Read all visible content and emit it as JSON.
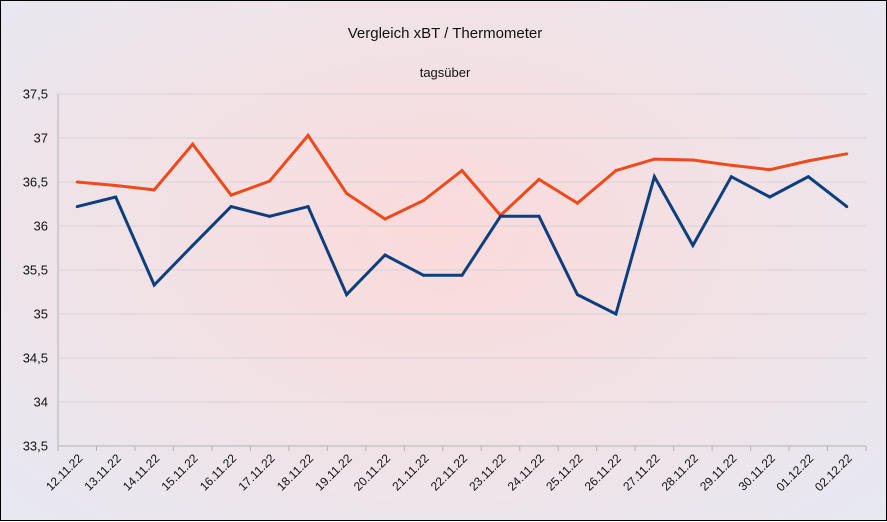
{
  "chart_data": {
    "type": "line",
    "title": "Vergleich xBT / Thermometer",
    "subtitle": "tagsüber",
    "xlabel": "",
    "ylabel": "",
    "ylim": [
      33.5,
      37.5
    ],
    "y_ticks": [
      "33,5",
      "34",
      "34,5",
      "35",
      "35,5",
      "36",
      "36,5",
      "37",
      "37,5"
    ],
    "y_tick_values": [
      33.5,
      34,
      34.5,
      35,
      35.5,
      36,
      36.5,
      37,
      37.5
    ],
    "categories": [
      "12.11.22",
      "13.11.22",
      "14.11.22",
      "15.11.22",
      "16.11.22",
      "17.11.22",
      "18.11.22",
      "19.11.22",
      "20.11.22",
      "21.11.22",
      "22.11.22",
      "23.11.22",
      "24.11.22",
      "25.11.22",
      "26.11.22",
      "27.11.22",
      "28.11.22",
      "29.11.22",
      "30.11.22",
      "01.12.22",
      "02.12.22"
    ],
    "grid": true,
    "legend": "none",
    "series": [
      {
        "color": "#f04a1c",
        "values": [
          36.5,
          36.46,
          36.41,
          36.93,
          36.35,
          36.51,
          37.03,
          36.37,
          36.08,
          36.29,
          36.63,
          36.12,
          36.53,
          36.26,
          36.63,
          36.76,
          36.75,
          36.69,
          36.64,
          36.74,
          36.82
        ]
      },
      {
        "color": "#0d3f7e",
        "values": [
          36.22,
          36.33,
          35.33,
          35.78,
          36.22,
          36.11,
          36.22,
          35.22,
          35.67,
          35.44,
          35.44,
          36.11,
          36.11,
          35.22,
          35.0,
          36.56,
          35.78,
          36.56,
          36.33,
          36.56,
          36.22
        ]
      }
    ]
  }
}
